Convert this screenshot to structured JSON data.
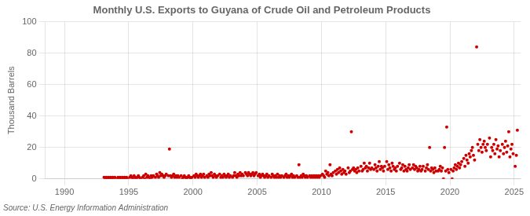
{
  "chart_data": {
    "type": "scatter",
    "title": "Monthly U.S. Exports to Guyana of Crude Oil and Petroleum Products",
    "ylabel": "Thousand Barrels",
    "source": "Source: U.S. Energy Information Administration",
    "color": "#CC0000",
    "xlim": [
      1988.5,
      2025.5
    ],
    "xticks": [
      1990,
      1995,
      2000,
      2005,
      2010,
      2015,
      2020,
      2025
    ],
    "ylim": [
      0,
      100
    ],
    "yticks": [
      0,
      20,
      40,
      60,
      80,
      100
    ],
    "grid": true,
    "x": [
      1993.08,
      1993.17,
      1993.25,
      1993.33,
      1993.42,
      1993.5,
      1993.58,
      1993.67,
      1993.75,
      1993.83,
      1993.92,
      1994.08,
      1994.17,
      1994.25,
      1994.33,
      1994.42,
      1994.5,
      1994.58,
      1994.67,
      1994.75,
      1994.83,
      1994.92,
      1995.08,
      1995.17,
      1995.25,
      1995.33,
      1995.42,
      1995.5,
      1995.58,
      1995.67,
      1995.75,
      1995.83,
      1995.92,
      1996.08,
      1996.17,
      1996.25,
      1996.33,
      1996.42,
      1996.5,
      1996.58,
      1996.67,
      1996.75,
      1996.83,
      1996.92,
      1997.08,
      1997.17,
      1997.25,
      1997.33,
      1997.42,
      1997.5,
      1997.58,
      1997.67,
      1997.75,
      1997.83,
      1997.92,
      1998.08,
      1998.17,
      1998.25,
      1998.33,
      1998.42,
      1998.5,
      1998.58,
      1998.67,
      1998.75,
      1998.83,
      1998.92,
      1999.08,
      1999.17,
      1999.25,
      1999.33,
      1999.42,
      1999.5,
      1999.58,
      1999.67,
      1999.75,
      1999.83,
      1999.92,
      2000.08,
      2000.17,
      2000.25,
      2000.33,
      2000.42,
      2000.5,
      2000.58,
      2000.67,
      2000.75,
      2000.83,
      2000.92,
      2001.08,
      2001.17,
      2001.25,
      2001.33,
      2001.42,
      2001.5,
      2001.58,
      2001.67,
      2001.75,
      2001.83,
      2001.92,
      2002.08,
      2002.17,
      2002.25,
      2002.33,
      2002.42,
      2002.5,
      2002.58,
      2002.67,
      2002.75,
      2002.83,
      2002.92,
      2003.08,
      2003.17,
      2003.25,
      2003.33,
      2003.42,
      2003.5,
      2003.58,
      2003.67,
      2003.75,
      2003.83,
      2003.92,
      2004.08,
      2004.17,
      2004.25,
      2004.33,
      2004.42,
      2004.5,
      2004.58,
      2004.67,
      2004.75,
      2004.83,
      2004.92,
      2005.08,
      2005.17,
      2005.25,
      2005.33,
      2005.42,
      2005.5,
      2005.58,
      2005.67,
      2005.75,
      2005.83,
      2005.92,
      2006.08,
      2006.17,
      2006.25,
      2006.33,
      2006.42,
      2006.5,
      2006.58,
      2006.67,
      2006.75,
      2006.83,
      2006.92,
      2007.08,
      2007.17,
      2007.25,
      2007.33,
      2007.42,
      2007.5,
      2007.58,
      2007.67,
      2007.75,
      2007.83,
      2007.92,
      2008.08,
      2008.17,
      2008.25,
      2008.33,
      2008.42,
      2008.5,
      2008.58,
      2008.67,
      2008.75,
      2008.83,
      2008.92,
      2009.08,
      2009.17,
      2009.25,
      2009.33,
      2009.42,
      2009.5,
      2009.58,
      2009.67,
      2009.75,
      2009.83,
      2009.92,
      2010.08,
      2010.17,
      2010.25,
      2010.33,
      2010.42,
      2010.5,
      2010.58,
      2010.67,
      2010.75,
      2010.83,
      2010.92,
      2011.08,
      2011.17,
      2011.25,
      2011.33,
      2011.42,
      2011.5,
      2011.58,
      2011.67,
      2011.75,
      2011.83,
      2011.92,
      2012.08,
      2012.17,
      2012.25,
      2012.33,
      2012.42,
      2012.5,
      2012.58,
      2012.67,
      2012.75,
      2012.83,
      2012.92,
      2013.08,
      2013.17,
      2013.25,
      2013.33,
      2013.42,
      2013.5,
      2013.58,
      2013.67,
      2013.75,
      2013.83,
      2013.92,
      2014.08,
      2014.17,
      2014.25,
      2014.33,
      2014.42,
      2014.5,
      2014.58,
      2014.67,
      2014.75,
      2014.83,
      2014.92,
      2015.08,
      2015.17,
      2015.25,
      2015.33,
      2015.42,
      2015.5,
      2015.58,
      2015.67,
      2015.75,
      2015.83,
      2015.92,
      2016.08,
      2016.17,
      2016.25,
      2016.33,
      2016.42,
      2016.5,
      2016.58,
      2016.67,
      2016.75,
      2016.83,
      2016.92,
      2017.08,
      2017.17,
      2017.25,
      2017.33,
      2017.42,
      2017.5,
      2017.58,
      2017.67,
      2017.75,
      2017.83,
      2017.92,
      2018.08,
      2018.17,
      2018.25,
      2018.33,
      2018.42,
      2018.5,
      2018.58,
      2018.67,
      2018.75,
      2018.83,
      2018.92,
      2019.08,
      2019.17,
      2019.25,
      2019.33,
      2019.42,
      2019.5,
      2019.58,
      2019.67,
      2019.75,
      2019.83,
      2019.92,
      2020.08,
      2020.17,
      2020.25,
      2020.33,
      2020.42,
      2020.5,
      2020.58,
      2020.67,
      2020.75,
      2020.83,
      2020.92,
      2021.08,
      2021.17,
      2021.25,
      2021.33,
      2021.42,
      2021.5,
      2021.58,
      2021.67,
      2021.75,
      2021.83,
      2021.92,
      2022.08,
      2022.17,
      2022.25,
      2022.33,
      2022.42,
      2022.5,
      2022.58,
      2022.67,
      2022.75,
      2022.83,
      2022.92,
      2023.08,
      2023.17,
      2023.25,
      2023.33,
      2023.42,
      2023.5,
      2023.58,
      2023.67,
      2023.75,
      2023.83,
      2023.92,
      2024.08,
      2024.17,
      2024.25,
      2024.33,
      2024.42,
      2024.5,
      2024.58,
      2024.67,
      2024.75,
      2024.83,
      2024.92,
      2025.08,
      2025.17,
      2025.25
    ],
    "values": [
      1,
      0,
      1,
      0,
      1,
      0,
      1,
      0,
      1,
      0,
      1,
      0,
      1,
      0,
      1,
      0,
      1,
      0,
      1,
      0,
      1,
      0,
      1,
      2,
      1,
      0,
      2,
      1,
      0,
      1,
      2,
      1,
      0,
      1,
      2,
      0,
      3,
      1,
      2,
      1,
      0,
      2,
      1,
      2,
      1,
      3,
      2,
      1,
      4,
      2,
      3,
      2,
      1,
      2,
      3,
      2,
      19,
      2,
      1,
      2,
      3,
      1,
      2,
      1,
      2,
      1,
      2,
      0,
      1,
      2,
      1,
      0,
      1,
      2,
      1,
      0,
      1,
      2,
      1,
      3,
      2,
      1,
      2,
      3,
      1,
      2,
      3,
      1,
      2,
      1,
      3,
      2,
      4,
      2,
      1,
      3,
      2,
      1,
      2,
      3,
      1,
      2,
      1,
      3,
      2,
      1,
      2,
      3,
      1,
      2,
      1,
      2,
      4,
      2,
      1,
      3,
      2,
      4,
      2,
      3,
      2,
      4,
      3,
      2,
      4,
      3,
      2,
      3,
      4,
      2,
      3,
      4,
      2,
      3,
      1,
      2,
      3,
      2,
      1,
      2,
      3,
      1,
      2,
      1,
      3,
      2,
      1,
      2,
      1,
      3,
      1,
      2,
      1,
      2,
      1,
      2,
      3,
      1,
      2,
      1,
      2,
      3,
      1,
      2,
      1,
      2,
      1,
      9,
      1,
      2,
      1,
      3,
      2,
      1,
      2,
      1,
      2,
      1,
      2,
      1,
      2,
      1,
      2,
      1,
      2,
      1,
      2,
      3,
      2,
      1,
      5,
      3,
      4,
      2,
      9,
      3,
      2,
      4,
      5,
      3,
      6,
      4,
      7,
      5,
      3,
      6,
      4,
      5,
      3,
      7,
      4,
      5,
      30,
      6,
      7,
      5,
      6,
      4,
      7,
      5,
      8,
      5,
      6,
      10,
      7,
      8,
      5,
      7,
      10,
      6,
      7,
      6,
      9,
      7,
      5,
      8,
      11,
      6,
      8,
      7,
      5,
      8,
      11,
      6,
      9,
      7,
      5,
      10,
      8,
      6,
      7,
      5,
      8,
      10,
      6,
      7,
      9,
      5,
      8,
      6,
      5,
      7,
      9,
      6,
      7,
      9,
      6,
      8,
      7,
      5,
      6,
      8,
      5,
      6,
      8,
      5,
      7,
      9,
      6,
      20,
      5,
      7,
      6,
      4,
      7,
      5,
      5,
      6,
      8,
      5,
      7,
      0,
      20,
      5,
      33,
      6,
      4,
      6,
      0,
      5,
      7,
      9,
      6,
      8,
      10,
      7,
      9,
      11,
      13,
      8,
      15,
      12,
      10,
      16,
      14,
      18,
      20,
      15,
      12,
      84,
      22,
      18,
      25,
      20,
      17,
      22,
      24,
      20,
      18,
      22,
      26,
      14,
      20,
      18,
      22,
      16,
      25,
      19,
      21,
      14,
      18,
      22,
      16,
      20,
      24,
      17,
      21,
      30,
      14,
      19,
      22,
      16,
      8,
      15,
      31
    ]
  }
}
